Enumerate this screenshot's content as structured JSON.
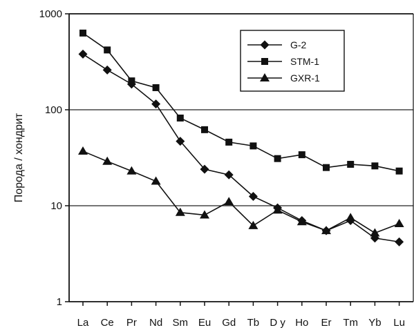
{
  "chart_data": {
    "type": "line",
    "title": "",
    "xlabel": "",
    "ylabel": "Порода / хондрит",
    "yscale": "log",
    "ylim": [
      1,
      1000
    ],
    "yticks": [
      "1",
      "10",
      "100",
      "1000"
    ],
    "grid": "horizontal lines at 10 and 100",
    "legend_position": "top-right",
    "categories": [
      "La",
      "Ce",
      "Pr",
      "Nd",
      "Sm",
      "Eu",
      "Gd",
      "Tb",
      "D y",
      "Ho",
      "Er",
      "Tm",
      "Yb",
      "Lu"
    ],
    "series": [
      {
        "name": "G-2",
        "marker": "diamond",
        "values": [
          380,
          260,
          185,
          115,
          47,
          24,
          21,
          12.5,
          9.5,
          7,
          5.5,
          7,
          4.6,
          4.2
        ]
      },
      {
        "name": "STM-1",
        "marker": "square",
        "values": [
          630,
          420,
          200,
          170,
          82,
          62,
          46,
          42,
          31,
          34,
          25,
          27,
          26,
          23
        ]
      },
      {
        "name": "GXR-1",
        "marker": "triangle",
        "values": [
          37,
          29,
          23,
          18,
          8.5,
          8,
          11,
          6.2,
          9,
          6.8,
          5.5,
          7.5,
          5.2,
          6.5
        ]
      }
    ]
  }
}
